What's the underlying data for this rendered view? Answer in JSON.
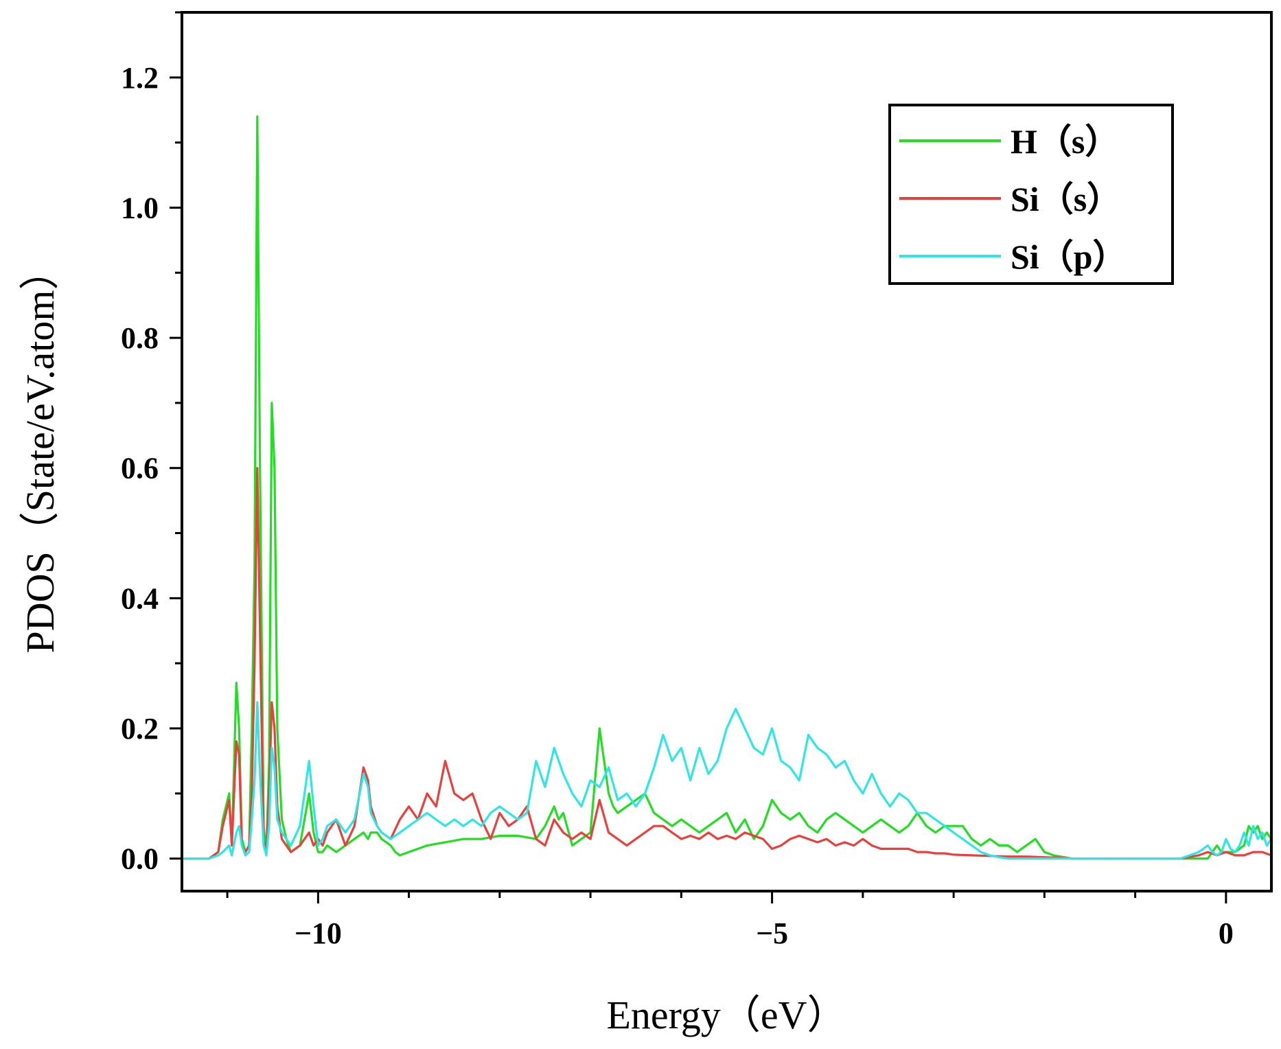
{
  "chart_data": {
    "type": "line",
    "title": "",
    "xlabel": "Energy（eV）",
    "ylabel": "PDOS（State/eV.atom）",
    "xlim": [
      -11.5,
      0.5
    ],
    "ylim": [
      -0.05,
      1.3
    ],
    "xticks": [
      -10,
      -5,
      0
    ],
    "xtick_labels": [
      "−10",
      "−5",
      "0"
    ],
    "yticks": [
      0.0,
      0.2,
      0.4,
      0.6,
      0.8,
      1.0,
      1.2
    ],
    "ytick_labels": [
      "0.0",
      "0.2",
      "0.4",
      "0.6",
      "0.8",
      "1.0",
      "1.2"
    ],
    "grid": false,
    "legend_position": "top-right",
    "series": [
      {
        "name": "H（s）",
        "color": "#22dd22",
        "x": [
          -11.5,
          -11.2,
          -11.1,
          -11.05,
          -10.98,
          -10.95,
          -10.9,
          -10.87,
          -10.84,
          -10.8,
          -10.76,
          -10.73,
          -10.7,
          -10.67,
          -10.64,
          -10.6,
          -10.57,
          -10.54,
          -10.51,
          -10.48,
          -10.45,
          -10.4,
          -10.35,
          -10.3,
          -10.2,
          -10.1,
          -10.05,
          -10.0,
          -9.95,
          -9.9,
          -9.8,
          -9.7,
          -9.6,
          -9.5,
          -9.45,
          -9.42,
          -9.35,
          -9.3,
          -9.2,
          -9.15,
          -9.1,
          -9.0,
          -8.8,
          -8.6,
          -8.4,
          -8.2,
          -8.0,
          -7.8,
          -7.6,
          -7.5,
          -7.4,
          -7.35,
          -7.3,
          -7.2,
          -7.1,
          -7.0,
          -6.9,
          -6.85,
          -6.8,
          -6.75,
          -6.7,
          -6.6,
          -6.5,
          -6.4,
          -6.3,
          -6.2,
          -6.1,
          -6.0,
          -5.9,
          -5.8,
          -5.7,
          -5.6,
          -5.5,
          -5.4,
          -5.3,
          -5.2,
          -5.1,
          -5.0,
          -4.9,
          -4.8,
          -4.7,
          -4.6,
          -4.5,
          -4.4,
          -4.3,
          -4.2,
          -4.1,
          -4.0,
          -3.9,
          -3.8,
          -3.7,
          -3.6,
          -3.5,
          -3.4,
          -3.3,
          -3.2,
          -3.1,
          -3.0,
          -2.9,
          -2.8,
          -2.7,
          -2.6,
          -2.5,
          -2.4,
          -2.3,
          -2.2,
          -2.1,
          -2.0,
          -1.9,
          -1.7,
          -0.5,
          -0.2,
          -0.15,
          -0.1,
          -0.05,
          0.0,
          0.1,
          0.2,
          0.25,
          0.3,
          0.35,
          0.4,
          0.45,
          0.5
        ],
        "values": [
          0,
          0,
          0.01,
          0.06,
          0.1,
          0.02,
          0.27,
          0.2,
          0.03,
          0.01,
          0.02,
          0.2,
          0.45,
          1.14,
          0.6,
          0.05,
          0.01,
          0.15,
          0.7,
          0.6,
          0.2,
          0.06,
          0.03,
          0.01,
          0.02,
          0.1,
          0.04,
          0.01,
          0.01,
          0.02,
          0.01,
          0.02,
          0.03,
          0.04,
          0.03,
          0.04,
          0.04,
          0.03,
          0.02,
          0.01,
          0.005,
          0.01,
          0.02,
          0.025,
          0.03,
          0.03,
          0.035,
          0.035,
          0.03,
          0.05,
          0.08,
          0.06,
          0.07,
          0.02,
          0.03,
          0.04,
          0.2,
          0.15,
          0.1,
          0.08,
          0.07,
          0.08,
          0.09,
          0.1,
          0.07,
          0.06,
          0.05,
          0.06,
          0.05,
          0.04,
          0.05,
          0.06,
          0.07,
          0.04,
          0.06,
          0.03,
          0.05,
          0.09,
          0.07,
          0.06,
          0.07,
          0.05,
          0.04,
          0.06,
          0.07,
          0.06,
          0.05,
          0.04,
          0.05,
          0.06,
          0.05,
          0.04,
          0.05,
          0.07,
          0.05,
          0.04,
          0.05,
          0.05,
          0.05,
          0.03,
          0.02,
          0.03,
          0.02,
          0.02,
          0.01,
          0.02,
          0.03,
          0.01,
          0.005,
          0,
          0,
          0,
          0.01,
          0.02,
          0.01,
          0.01,
          0.01,
          0.02,
          0.05,
          0.04,
          0.05,
          0.03,
          0.04,
          0.03
        ]
      },
      {
        "name": "Si（s）",
        "color": "#e8403c",
        "x": [
          -11.5,
          -11.2,
          -11.1,
          -11.05,
          -10.98,
          -10.95,
          -10.9,
          -10.87,
          -10.84,
          -10.8,
          -10.76,
          -10.73,
          -10.7,
          -10.67,
          -10.64,
          -10.6,
          -10.57,
          -10.54,
          -10.51,
          -10.48,
          -10.45,
          -10.4,
          -10.35,
          -10.3,
          -10.2,
          -10.1,
          -10.05,
          -10.0,
          -9.95,
          -9.9,
          -9.8,
          -9.7,
          -9.6,
          -9.5,
          -9.45,
          -9.42,
          -9.35,
          -9.3,
          -9.2,
          -9.1,
          -9.0,
          -8.9,
          -8.8,
          -8.7,
          -8.6,
          -8.5,
          -8.4,
          -8.3,
          -8.2,
          -8.1,
          -8.0,
          -7.9,
          -7.8,
          -7.7,
          -7.6,
          -7.5,
          -7.4,
          -7.3,
          -7.2,
          -7.1,
          -7.0,
          -6.9,
          -6.8,
          -6.7,
          -6.6,
          -6.5,
          -6.4,
          -6.3,
          -6.2,
          -6.1,
          -6.0,
          -5.9,
          -5.8,
          -5.7,
          -5.6,
          -5.5,
          -5.4,
          -5.3,
          -5.2,
          -5.1,
          -5.0,
          -4.9,
          -4.8,
          -4.7,
          -4.6,
          -4.5,
          -4.4,
          -4.3,
          -4.2,
          -4.1,
          -4.0,
          -3.9,
          -3.8,
          -3.7,
          -3.6,
          -3.5,
          -3.4,
          -3.3,
          -3.2,
          -3.1,
          -3.0,
          -2.8,
          -2.6,
          -2.4,
          -2.2,
          -2.0,
          -1.8,
          -1.7,
          -0.5,
          -0.3,
          -0.2,
          -0.1,
          0.0,
          0.1,
          0.2,
          0.3,
          0.4,
          0.5
        ],
        "values": [
          0,
          0,
          0.01,
          0.05,
          0.09,
          0.02,
          0.18,
          0.16,
          0.02,
          0.01,
          0.02,
          0.1,
          0.3,
          0.6,
          0.35,
          0.03,
          0.01,
          0.1,
          0.24,
          0.2,
          0.08,
          0.03,
          0.02,
          0.01,
          0.02,
          0.04,
          0.02,
          0.03,
          0.02,
          0.04,
          0.06,
          0.02,
          0.05,
          0.14,
          0.12,
          0.08,
          0.05,
          0.04,
          0.03,
          0.06,
          0.08,
          0.06,
          0.1,
          0.08,
          0.15,
          0.1,
          0.09,
          0.1,
          0.06,
          0.03,
          0.07,
          0.05,
          0.06,
          0.08,
          0.03,
          0.02,
          0.06,
          0.04,
          0.03,
          0.04,
          0.03,
          0.09,
          0.04,
          0.03,
          0.02,
          0.03,
          0.04,
          0.05,
          0.05,
          0.04,
          0.03,
          0.035,
          0.03,
          0.04,
          0.03,
          0.035,
          0.03,
          0.04,
          0.035,
          0.03,
          0.015,
          0.02,
          0.03,
          0.035,
          0.03,
          0.025,
          0.03,
          0.02,
          0.025,
          0.02,
          0.03,
          0.02,
          0.015,
          0.015,
          0.015,
          0.015,
          0.01,
          0.01,
          0.008,
          0.008,
          0.006,
          0.005,
          0.004,
          0.003,
          0.003,
          0.002,
          0.001,
          0,
          0,
          0.005,
          0.01,
          0.005,
          0.01,
          0.005,
          0.005,
          0.01,
          0.01,
          0.005
        ]
      },
      {
        "name": "Si（p）",
        "color": "#2ee6e6",
        "x": [
          -11.5,
          -11.2,
          -11.1,
          -11.05,
          -10.98,
          -10.95,
          -10.9,
          -10.87,
          -10.84,
          -10.8,
          -10.76,
          -10.73,
          -10.7,
          -10.67,
          -10.64,
          -10.6,
          -10.57,
          -10.54,
          -10.51,
          -10.48,
          -10.45,
          -10.4,
          -10.35,
          -10.3,
          -10.2,
          -10.1,
          -10.05,
          -10.0,
          -9.95,
          -9.9,
          -9.8,
          -9.7,
          -9.6,
          -9.5,
          -9.45,
          -9.42,
          -9.35,
          -9.3,
          -9.2,
          -9.1,
          -9.0,
          -8.9,
          -8.8,
          -8.7,
          -8.6,
          -8.5,
          -8.4,
          -8.3,
          -8.2,
          -8.1,
          -8.0,
          -7.9,
          -7.8,
          -7.7,
          -7.6,
          -7.5,
          -7.4,
          -7.3,
          -7.2,
          -7.1,
          -7.0,
          -6.9,
          -6.8,
          -6.7,
          -6.6,
          -6.5,
          -6.4,
          -6.3,
          -6.2,
          -6.1,
          -6.0,
          -5.9,
          -5.8,
          -5.7,
          -5.6,
          -5.5,
          -5.4,
          -5.3,
          -5.2,
          -5.1,
          -5.0,
          -4.9,
          -4.8,
          -4.7,
          -4.6,
          -4.5,
          -4.4,
          -4.3,
          -4.2,
          -4.1,
          -4.0,
          -3.9,
          -3.8,
          -3.7,
          -3.6,
          -3.5,
          -3.4,
          -3.3,
          -3.2,
          -3.1,
          -3.0,
          -2.9,
          -2.8,
          -2.7,
          -2.6,
          -2.5,
          -2.4,
          -2.3,
          -2.2,
          -2.1,
          -2.0,
          -1.9,
          -1.8,
          -1.7,
          -0.5,
          -0.3,
          -0.2,
          -0.15,
          -0.1,
          -0.05,
          0.0,
          0.05,
          0.1,
          0.15,
          0.2,
          0.25,
          0.3,
          0.35,
          0.4,
          0.45,
          0.5
        ],
        "values": [
          0,
          0,
          0.005,
          0.01,
          0.02,
          0.005,
          0.04,
          0.05,
          0.02,
          0.005,
          0.01,
          0.06,
          0.12,
          0.24,
          0.13,
          0.02,
          0.005,
          0.05,
          0.17,
          0.14,
          0.06,
          0.04,
          0.03,
          0.02,
          0.05,
          0.15,
          0.08,
          0.02,
          0.03,
          0.05,
          0.06,
          0.04,
          0.06,
          0.13,
          0.11,
          0.07,
          0.05,
          0.04,
          0.03,
          0.04,
          0.05,
          0.06,
          0.07,
          0.06,
          0.05,
          0.06,
          0.05,
          0.06,
          0.05,
          0.07,
          0.08,
          0.07,
          0.06,
          0.07,
          0.15,
          0.11,
          0.17,
          0.13,
          0.1,
          0.08,
          0.12,
          0.11,
          0.14,
          0.09,
          0.1,
          0.08,
          0.1,
          0.14,
          0.19,
          0.15,
          0.17,
          0.12,
          0.17,
          0.13,
          0.15,
          0.2,
          0.23,
          0.2,
          0.17,
          0.16,
          0.2,
          0.15,
          0.14,
          0.12,
          0.19,
          0.17,
          0.16,
          0.14,
          0.15,
          0.12,
          0.1,
          0.13,
          0.1,
          0.08,
          0.1,
          0.09,
          0.07,
          0.07,
          0.06,
          0.05,
          0.04,
          0.03,
          0.02,
          0.01,
          0.005,
          0.002,
          0,
          0,
          0,
          0,
          0,
          0,
          0,
          0,
          0,
          0.01,
          0.02,
          0.01,
          0.005,
          0.01,
          0.03,
          0.015,
          0.01,
          0.02,
          0.04,
          0.02,
          0.05,
          0.03,
          0.04,
          0.02,
          0.03
        ]
      }
    ]
  }
}
